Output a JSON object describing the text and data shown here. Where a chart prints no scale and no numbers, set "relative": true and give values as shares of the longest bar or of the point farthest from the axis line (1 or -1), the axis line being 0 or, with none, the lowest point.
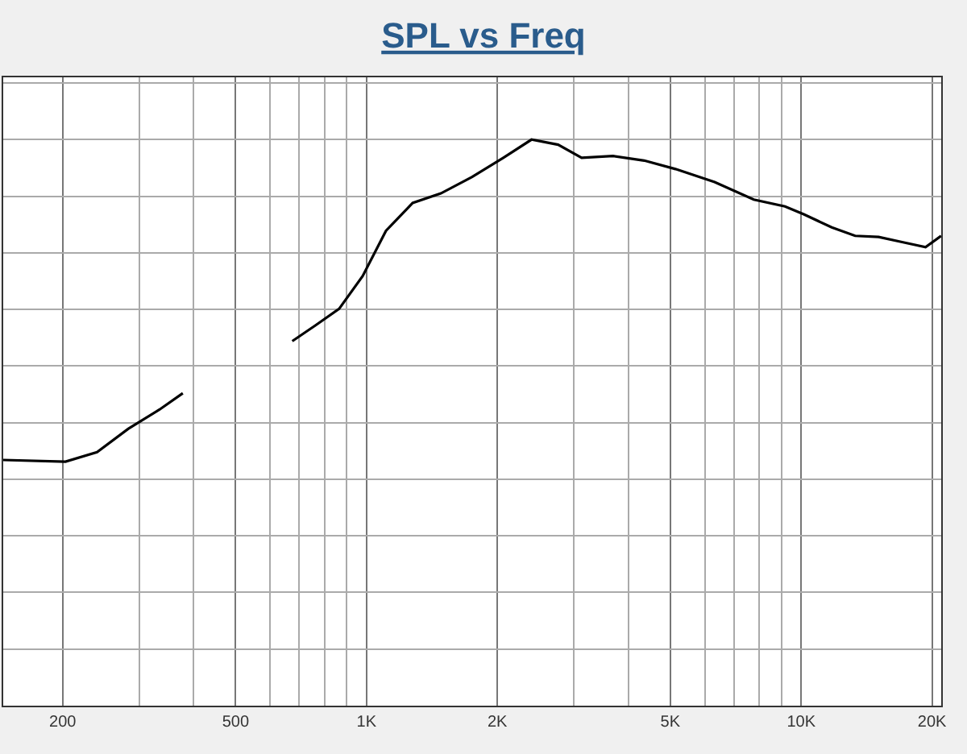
{
  "chart_data": {
    "type": "line",
    "title": "SPL vs Freq",
    "relative": true,
    "log": "x",
    "grid": true,
    "xlim": [
      146,
      21000
    ],
    "xticks": [
      200,
      500,
      {
        "value": 1000,
        "label": "1K"
      },
      {
        "value": 2000,
        "label": "2K"
      },
      {
        "value": 5000,
        "label": "5K"
      },
      {
        "value": 10000,
        "label": "10K"
      },
      {
        "value": 20000,
        "label": "20K"
      }
    ],
    "x": [
      146,
      203,
      240,
      283,
      334,
      378,
      506,
      675,
      764,
      865,
      980,
      1109,
      1277,
      1483,
      1750,
      2065,
      2397,
      2760,
      3126,
      3690,
      4355,
      5140,
      6324,
      7780,
      9180,
      10140,
      11760,
      13310,
      15070,
      17070,
      19330,
      20990
    ],
    "series": [
      {
        "color": "#000000",
        "values": [
          0.434,
          0.431,
          0.448,
          0.489,
          0.523,
          0.552,
          null,
          0.644,
          0.672,
          0.701,
          0.759,
          0.839,
          0.888,
          0.905,
          0.934,
          0.968,
          1,
          0.991,
          0.968,
          0.971,
          0.963,
          0.948,
          0.925,
          0.894,
          0.882,
          0.868,
          0.845,
          0.83,
          0.828,
          0.819,
          0.81,
          0.83
        ]
      }
    ]
  }
}
